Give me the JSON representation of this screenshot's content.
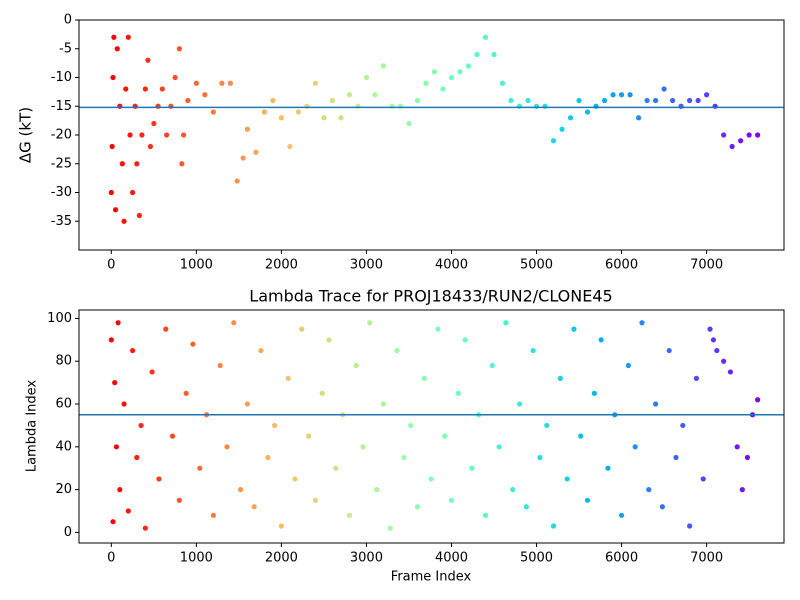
{
  "chart_data": [
    {
      "type": "scatter",
      "ylabel": "ΔG (kT)",
      "colormap": "rainbow",
      "colormap_reversed": true,
      "hline": {
        "value": -15.2,
        "color": "#1f77b4"
      },
      "xlim": [
        -380,
        7910
      ],
      "ylim": [
        -40,
        0
      ],
      "xticks": [
        0,
        1000,
        2000,
        3000,
        4000,
        5000,
        6000,
        7000
      ],
      "yticks": [
        0,
        -5,
        -10,
        -15,
        -20,
        -25,
        -30,
        -35
      ],
      "x": [
        0,
        10,
        20,
        30,
        50,
        70,
        100,
        130,
        150,
        170,
        200,
        220,
        250,
        280,
        300,
        330,
        360,
        400,
        430,
        460,
        500,
        550,
        600,
        650,
        700,
        750,
        800,
        830,
        850,
        900,
        1000,
        1100,
        1200,
        1300,
        1400,
        1480,
        1550,
        1600,
        1700,
        1800,
        1900,
        2000,
        2100,
        2200,
        2300,
        2400,
        2500,
        2600,
        2700,
        2800,
        2900,
        3000,
        3100,
        3200,
        3300,
        3400,
        3500,
        3600,
        3700,
        3800,
        3900,
        4000,
        4100,
        4200,
        4300,
        4400,
        4500,
        4600,
        4700,
        4800,
        4900,
        5000,
        5100,
        5200,
        5300,
        5400,
        5500,
        5600,
        5700,
        5800,
        5900,
        6000,
        6100,
        6200,
        6300,
        6400,
        6500,
        6600,
        6700,
        6800,
        6900,
        7000,
        7100,
        7200,
        7300,
        7400,
        7500,
        7600
      ],
      "values": [
        -30,
        -22,
        -10,
        -3,
        -33,
        -5,
        -15,
        -25,
        -35,
        -12,
        -3,
        -20,
        -30,
        -15,
        -25,
        -34,
        -20,
        -12,
        -7,
        -22,
        -18,
        -15,
        -12,
        -20,
        -15,
        -10,
        -5,
        -25,
        -20,
        -14,
        -11,
        -13,
        -16,
        -11,
        -11,
        -28,
        -24,
        -19,
        -23,
        -16,
        -14,
        -17,
        -22,
        -16,
        -15,
        -11,
        -17,
        -14,
        -17,
        -13,
        -15,
        -10,
        -13,
        -8,
        -15,
        -15,
        -18,
        -14,
        -11,
        -9,
        -12,
        -10,
        -9,
        -8,
        -6,
        -3,
        -6,
        -11,
        -14,
        -15,
        -14,
        -15,
        -15,
        -21,
        -19,
        -17,
        -14,
        -16,
        -15,
        -14,
        -13,
        -13,
        -13,
        -17,
        -14,
        -14,
        -12,
        -14,
        -15,
        -14,
        -14,
        -13,
        -15,
        -20,
        -22,
        -21,
        -20,
        -20
      ]
    },
    {
      "type": "scatter",
      "title": "Lambda Trace for PROJ18433/RUN2/CLONE45",
      "xlabel": "Frame Index",
      "ylabel": "Lambda Index",
      "colormap": "rainbow",
      "colormap_reversed": true,
      "hline": {
        "value": 55,
        "color": "#1f77b4"
      },
      "xlim": [
        -380,
        7910
      ],
      "ylim": [
        -4.95,
        103.95
      ],
      "xticks": [
        0,
        1000,
        2000,
        3000,
        4000,
        5000,
        6000,
        7000
      ],
      "yticks": [
        0,
        20,
        40,
        60,
        80,
        100
      ],
      "x": [
        0,
        20,
        40,
        60,
        80,
        100,
        150,
        200,
        250,
        300,
        350,
        400,
        480,
        560,
        640,
        720,
        800,
        880,
        960,
        1040,
        1120,
        1200,
        1280,
        1360,
        1440,
        1520,
        1600,
        1680,
        1760,
        1840,
        1920,
        2000,
        2080,
        2160,
        2240,
        2320,
        2400,
        2480,
        2560,
        2640,
        2720,
        2800,
        2880,
        2960,
        3040,
        3120,
        3200,
        3280,
        3360,
        3440,
        3520,
        3600,
        3680,
        3760,
        3840,
        3920,
        4000,
        4080,
        4160,
        4240,
        4320,
        4400,
        4480,
        4560,
        4640,
        4720,
        4800,
        4880,
        4960,
        5040,
        5120,
        5200,
        5280,
        5360,
        5440,
        5520,
        5600,
        5680,
        5760,
        5840,
        5920,
        6000,
        6080,
        6160,
        6240,
        6320,
        6400,
        6480,
        6560,
        6640,
        6720,
        6800,
        6880,
        6960,
        7040,
        7080,
        7120,
        7200,
        7280,
        7360,
        7420,
        7480,
        7540,
        7600
      ],
      "values": [
        90,
        5,
        70,
        40,
        98,
        20,
        60,
        10,
        85,
        35,
        50,
        2,
        75,
        25,
        95,
        45,
        15,
        65,
        88,
        30,
        55,
        8,
        78,
        40,
        98,
        20,
        60,
        12,
        85,
        35,
        50,
        3,
        72,
        25,
        95,
        45,
        15,
        65,
        90,
        30,
        55,
        8,
        78,
        40,
        98,
        20,
        60,
        2,
        85,
        35,
        50,
        12,
        72,
        25,
        95,
        45,
        15,
        65,
        90,
        30,
        55,
        8,
        78,
        40,
        98,
        20,
        60,
        12,
        85,
        35,
        50,
        3,
        72,
        25,
        95,
        45,
        15,
        65,
        90,
        30,
        55,
        8,
        78,
        40,
        98,
        20,
        60,
        12,
        85,
        35,
        50,
        3,
        72,
        25,
        95,
        90,
        85,
        80,
        75,
        40,
        20,
        35,
        55,
        62
      ]
    }
  ]
}
